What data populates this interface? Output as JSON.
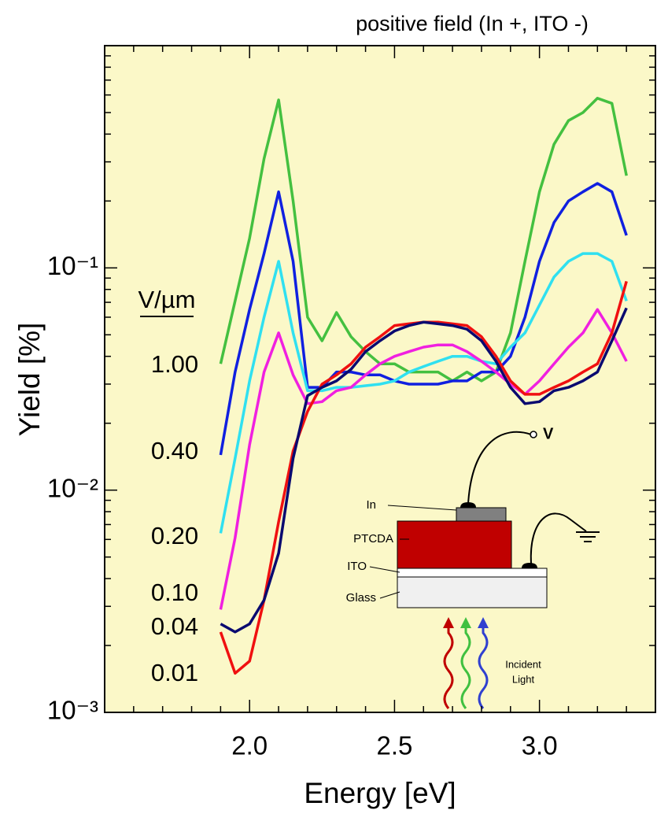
{
  "chart_data": {
    "type": "line",
    "title": "positive field (In +, ITO -)",
    "xlabel": "Energy [eV]",
    "ylabel": "Yield [%]",
    "log_y": true,
    "background": "#fbf8c8",
    "xlim": [
      1.5,
      3.4
    ],
    "xticks": [
      {
        "value": 2.0,
        "label": "2.0"
      },
      {
        "value": 2.5,
        "label": "2.5"
      },
      {
        "value": 3.0,
        "label": "3.0"
      }
    ],
    "xminorticks": [
      1.6,
      1.7,
      1.8,
      1.9,
      2.1,
      2.2,
      2.3,
      2.4,
      2.6,
      2.7,
      2.8,
      2.9,
      3.1,
      3.2,
      3.3
    ],
    "ylim": [
      0.001,
      1
    ],
    "yticks": [
      {
        "value": 0.001,
        "label": "10⁻³"
      },
      {
        "value": 0.01,
        "label": "10⁻²"
      },
      {
        "value": 0.1,
        "label": "10⁻¹"
      }
    ],
    "yminorticks": [
      0.002,
      0.003,
      0.004,
      0.005,
      0.006,
      0.007,
      0.008,
      0.009,
      0.02,
      0.03,
      0.04,
      0.05,
      0.06,
      0.07,
      0.08,
      0.09,
      0.2,
      0.3,
      0.4,
      0.5,
      0.6,
      0.7,
      0.8,
      0.9
    ],
    "legend_title": "V/µm",
    "x": [
      1.9,
      1.95,
      2.0,
      2.05,
      2.1,
      2.15,
      2.2,
      2.25,
      2.3,
      2.35,
      2.4,
      2.45,
      2.5,
      2.55,
      2.6,
      2.65,
      2.7,
      2.75,
      2.8,
      2.85,
      2.9,
      2.95,
      3.0,
      3.05,
      3.1,
      3.15,
      3.2,
      3.25,
      3.3
    ],
    "series": [
      {
        "name": "1.00",
        "color": "#44c040",
        "values": [
          0.037,
          0.071,
          0.136,
          0.31,
          0.57,
          0.2,
          0.06,
          0.047,
          0.063,
          0.049,
          0.042,
          0.037,
          0.037,
          0.034,
          0.034,
          0.034,
          0.031,
          0.034,
          0.031,
          0.034,
          0.051,
          0.107,
          0.22,
          0.36,
          0.46,
          0.5,
          0.58,
          0.55,
          0.26
        ]
      },
      {
        "name": "0.40",
        "color": "#1020e0",
        "values": [
          0.0144,
          0.034,
          0.065,
          0.116,
          0.22,
          0.107,
          0.029,
          0.029,
          0.034,
          0.034,
          0.033,
          0.033,
          0.031,
          0.03,
          0.03,
          0.03,
          0.031,
          0.031,
          0.034,
          0.034,
          0.04,
          0.06,
          0.107,
          0.16,
          0.2,
          0.22,
          0.24,
          0.22,
          0.14
        ]
      },
      {
        "name": "0.20",
        "color": "#30e0f0",
        "values": [
          0.0064,
          0.0139,
          0.031,
          0.06,
          0.107,
          0.051,
          0.028,
          0.028,
          0.029,
          0.029,
          0.0295,
          0.03,
          0.031,
          0.034,
          0.036,
          0.038,
          0.04,
          0.04,
          0.038,
          0.037,
          0.044,
          0.051,
          0.068,
          0.091,
          0.107,
          0.116,
          0.116,
          0.107,
          0.071
        ]
      },
      {
        "name": "0.10",
        "color": "#f020e0",
        "values": [
          0.0029,
          0.0061,
          0.016,
          0.034,
          0.051,
          0.033,
          0.0245,
          0.025,
          0.028,
          0.029,
          0.033,
          0.037,
          0.04,
          0.042,
          0.044,
          0.045,
          0.045,
          0.042,
          0.038,
          0.034,
          0.03,
          0.027,
          0.031,
          0.037,
          0.044,
          0.051,
          0.065,
          0.051,
          0.038
        ]
      },
      {
        "name": "0.04",
        "color": "#f01010",
        "values": [
          0.0023,
          0.0015,
          0.0017,
          0.0032,
          0.0072,
          0.015,
          0.0226,
          0.03,
          0.033,
          0.037,
          0.044,
          0.049,
          0.055,
          0.056,
          0.057,
          0.057,
          0.056,
          0.055,
          0.049,
          0.04,
          0.031,
          0.027,
          0.027,
          0.029,
          0.031,
          0.034,
          0.037,
          0.051,
          0.087
        ]
      },
      {
        "name": "0.01",
        "color": "#0a0a70",
        "values": [
          0.0025,
          0.0023,
          0.0025,
          0.0032,
          0.0052,
          0.0139,
          0.0266,
          0.029,
          0.031,
          0.035,
          0.042,
          0.047,
          0.052,
          0.055,
          0.057,
          0.056,
          0.055,
          0.053,
          0.047,
          0.038,
          0.029,
          0.0245,
          0.025,
          0.028,
          0.029,
          0.031,
          0.034,
          0.047,
          0.066
        ]
      }
    ],
    "inset": {
      "in": "In",
      "ptcda": "PTCDA",
      "ito": "ITO",
      "glass": "Glass",
      "v": "V",
      "light": [
        "Incident",
        "Light"
      ]
    }
  }
}
